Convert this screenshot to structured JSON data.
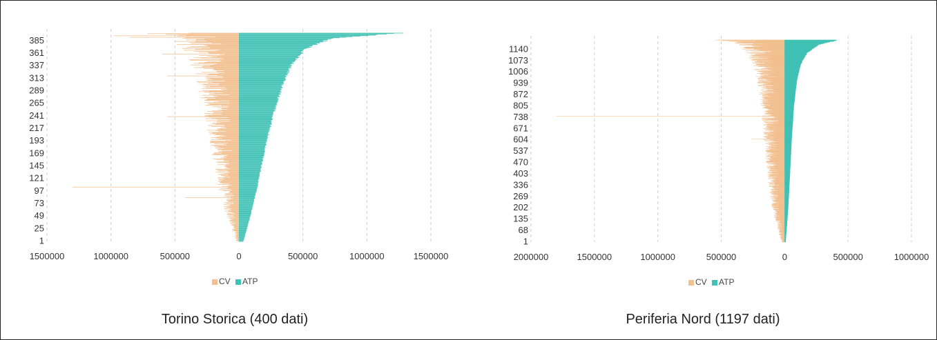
{
  "colors": {
    "cv": "#f2bf8f",
    "atp": "#3fc1b4",
    "grid": "#cfcfcf"
  },
  "chart_data": [
    {
      "type": "bar",
      "orientation": "horizontal-butterfly",
      "caption": "Torino Storica (400 dati)",
      "n_rows": 400,
      "xlim": [
        -1500000,
        1500000
      ],
      "x_ticks": [
        "1500000",
        "1000000",
        "500000",
        "0",
        "500000",
        "1000000",
        "1500000"
      ],
      "x_tick_values": [
        -1500000,
        -1000000,
        -500000,
        0,
        500000,
        1000000,
        1500000
      ],
      "y_ticks": [
        "385",
        "361",
        "337",
        "313",
        "289",
        "265",
        "241",
        "217",
        "193",
        "169",
        "145",
        "121",
        "97",
        "73",
        "49",
        "25",
        "1"
      ],
      "legend": [
        "CV",
        "ATP"
      ],
      "legend_position": "bottom",
      "atp_profile": [
        [
          1,
          35000
        ],
        [
          50,
          90000
        ],
        [
          100,
          140000
        ],
        [
          150,
          180000
        ],
        [
          200,
          225000
        ],
        [
          250,
          275000
        ],
        [
          300,
          340000
        ],
        [
          340,
          410000
        ],
        [
          370,
          520000
        ],
        [
          390,
          720000
        ],
        [
          400,
          1250000
        ]
      ],
      "cv_profile": [
        [
          1,
          15000
        ],
        [
          50,
          70000
        ],
        [
          100,
          110000
        ],
        [
          150,
          140000
        ],
        [
          200,
          165000
        ],
        [
          250,
          190000
        ],
        [
          300,
          230000
        ],
        [
          340,
          270000
        ],
        [
          370,
          330000
        ],
        [
          390,
          420000
        ],
        [
          400,
          520000
        ]
      ],
      "cv_outliers": [
        [
          105,
          1300000
        ],
        [
          85,
          420000
        ],
        [
          240,
          560000
        ],
        [
          395,
          980000
        ],
        [
          392,
          850000
        ],
        [
          360,
          600000
        ],
        [
          318,
          560000
        ]
      ]
    },
    {
      "type": "bar",
      "orientation": "horizontal-butterfly",
      "caption": "Periferia Nord (1197 dati)",
      "n_rows": 1197,
      "xlim": [
        -2000000,
        1000000
      ],
      "x_ticks": [
        "2000000",
        "1500000",
        "1000000",
        "500000",
        "0",
        "500000",
        "1000000"
      ],
      "x_tick_values": [
        -2000000,
        -1500000,
        -1000000,
        -500000,
        0,
        500000,
        1000000
      ],
      "y_ticks": [
        "1140",
        "1073",
        "1006",
        "939",
        "872",
        "805",
        "738",
        "671",
        "604",
        "537",
        "470",
        "403",
        "336",
        "269",
        "202",
        "135",
        "68",
        "1"
      ],
      "legend": [
        "CV",
        "ATP"
      ],
      "legend_position": "bottom",
      "atp_profile": [
        [
          1,
          8000
        ],
        [
          200,
          28000
        ],
        [
          400,
          42000
        ],
        [
          600,
          55000
        ],
        [
          800,
          72000
        ],
        [
          950,
          95000
        ],
        [
          1050,
          125000
        ],
        [
          1120,
          175000
        ],
        [
          1170,
          270000
        ],
        [
          1197,
          420000
        ]
      ],
      "cv_profile": [
        [
          1,
          20000
        ],
        [
          200,
          70000
        ],
        [
          400,
          95000
        ],
        [
          600,
          115000
        ],
        [
          800,
          130000
        ],
        [
          950,
          150000
        ],
        [
          1050,
          175000
        ],
        [
          1120,
          210000
        ],
        [
          1170,
          260000
        ],
        [
          1197,
          380000
        ]
      ],
      "cv_outliers": [
        [
          745,
          1800000
        ],
        [
          1190,
          420000
        ],
        [
          1150,
          330000
        ],
        [
          610,
          260000
        ]
      ]
    }
  ]
}
